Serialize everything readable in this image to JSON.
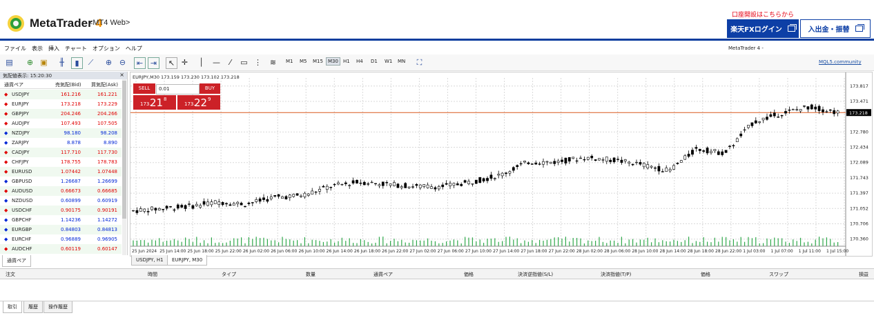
{
  "header": {
    "app_name": "MetaTrader",
    "app_number": "4",
    "subtitle": "<MT4 Web>",
    "promo": "口座開設はこちらから",
    "login_button": "楽天FXログイン",
    "deposit_button": "入出金・振替"
  },
  "menu": [
    "ファイル",
    "表示",
    "挿入",
    "チャート",
    "オプション",
    "ヘルプ"
  ],
  "window_title": "MetaTrader 4 -",
  "toolbar": {
    "timeframes": [
      "M1",
      "M5",
      "M15",
      "M30",
      "H1",
      "H4",
      "D1",
      "W1",
      "MN"
    ],
    "active_timeframe": "M30",
    "mql5_link": "MQL5.community"
  },
  "market_watch": {
    "title": "気配値表示: 15:20:30",
    "col_symbol": "通貨ペア",
    "col_bid": "売気配(Bid)",
    "col_ask": "買気配(Ask)",
    "rows": [
      {
        "symbol": "USDJPY",
        "bid": "161.216",
        "ask": "161.221",
        "dir": "down"
      },
      {
        "symbol": "EURJPY",
        "bid": "173.218",
        "ask": "173.229",
        "dir": "down"
      },
      {
        "symbol": "GBPJPY",
        "bid": "204.246",
        "ask": "204.266",
        "dir": "down"
      },
      {
        "symbol": "AUDJPY",
        "bid": "107.493",
        "ask": "107.505",
        "dir": "down"
      },
      {
        "symbol": "NZDJPY",
        "bid": "98.180",
        "ask": "98.208",
        "dir": "up"
      },
      {
        "symbol": "ZARJPY",
        "bid": "8.878",
        "ask": "8.890",
        "dir": "up"
      },
      {
        "symbol": "CADJPY",
        "bid": "117.710",
        "ask": "117.730",
        "dir": "down"
      },
      {
        "symbol": "CHFJPY",
        "bid": "178.755",
        "ask": "178.783",
        "dir": "down"
      },
      {
        "symbol": "EURUSD",
        "bid": "1.07442",
        "ask": "1.07448",
        "dir": "down"
      },
      {
        "symbol": "GBPUSD",
        "bid": "1.26687",
        "ask": "1.26699",
        "dir": "up"
      },
      {
        "symbol": "AUDUSD",
        "bid": "0.66673",
        "ask": "0.66685",
        "dir": "down"
      },
      {
        "symbol": "NZDUSD",
        "bid": "0.60899",
        "ask": "0.60919",
        "dir": "up"
      },
      {
        "symbol": "USDCHF",
        "bid": "0.90175",
        "ask": "0.90191",
        "dir": "down"
      },
      {
        "symbol": "GBPCHF",
        "bid": "1.14236",
        "ask": "1.14272",
        "dir": "up"
      },
      {
        "symbol": "EURGBP",
        "bid": "0.84803",
        "ask": "0.84813",
        "dir": "up"
      },
      {
        "symbol": "EURCHF",
        "bid": "0.96889",
        "ask": "0.96905",
        "dir": "up"
      },
      {
        "symbol": "AUDCHF",
        "bid": "0.60119",
        "ask": "0.60147",
        "dir": "down"
      }
    ],
    "tab": "通貨ペア"
  },
  "chart": {
    "info": "EURJPY,M30  173.159 173.230 173.102 173.218",
    "sell_label": "SELL",
    "buy_label": "BUY",
    "lot": "0.01",
    "sell_price_small": "173.",
    "sell_price_big": "21",
    "sell_price_sup": "8",
    "buy_price_small": "173.",
    "buy_price_big": "22",
    "buy_price_sup": "9",
    "price_labels": [
      "173.817",
      "173.471",
      "173.218",
      "172.780",
      "172.434",
      "172.089",
      "171.743",
      "171.397",
      "171.052",
      "170.706",
      "170.360"
    ],
    "current_price": "173.218",
    "time_labels": [
      "25 Jun 2024",
      "25 Jun 14:00",
      "25 Jun 18:00",
      "25 Jun 22:00",
      "26 Jun 02:00",
      "26 Jun 06:00",
      "26 Jun 10:00",
      "26 Jun 14:00",
      "26 Jun 18:00",
      "26 Jun 22:00",
      "27 Jun 02:00",
      "27 Jun 06:00",
      "27 Jun 10:00",
      "27 Jun 14:00",
      "27 Jun 18:00",
      "27 Jun 22:00",
      "28 Jun 02:00",
      "28 Jun 06:00",
      "28 Jun 10:00",
      "28 Jun 14:00",
      "28 Jun 18:00",
      "28 Jun 22:00",
      "1 Jul 03:00",
      "1 Jul 07:00",
      "1 Jul 11:00",
      "1 Jul 15:00"
    ],
    "tabs": [
      "USDJPY, H1",
      "EURJPY, M30"
    ],
    "active_tab": "EURJPY, M30"
  },
  "chart_data": {
    "type": "line",
    "ylim": [
      170.2,
      174.0
    ],
    "x": [
      "25 Jun 2024",
      "25 Jun 14:00",
      "25 Jun 18:00",
      "25 Jun 22:00",
      "26 Jun 02:00",
      "26 Jun 06:00",
      "26 Jun 10:00",
      "26 Jun 14:00",
      "26 Jun 18:00",
      "26 Jun 22:00",
      "27 Jun 02:00",
      "27 Jun 06:00",
      "27 Jun 10:00",
      "27 Jun 14:00",
      "27 Jun 18:00",
      "27 Jun 22:00",
      "28 Jun 02:00",
      "28 Jun 06:00",
      "28 Jun 10:00",
      "28 Jun 14:00",
      "28 Jun 18:00",
      "28 Jun 22:00",
      "1 Jul 03:00",
      "1 Jul 07:00",
      "1 Jul 11:00",
      "1 Jul 15:00"
    ],
    "values": [
      171.0,
      171.05,
      171.1,
      171.2,
      171.15,
      171.3,
      171.35,
      171.55,
      171.65,
      171.6,
      171.55,
      171.55,
      171.65,
      171.8,
      172.1,
      172.1,
      172.2,
      172.15,
      172.05,
      171.9,
      172.4,
      172.3,
      173.0,
      173.2,
      173.35,
      173.22
    ]
  },
  "terminal": {
    "columns": [
      "注文",
      "時間",
      "タイプ",
      "数量",
      "通貨ペア",
      "価格",
      "決済逆指値(S/L)",
      "決済指値(T/P)",
      "価格",
      "スワップ",
      "損益"
    ],
    "tabs": [
      "取引",
      "履歴",
      "操作履歴"
    ]
  },
  "colors": {
    "bid_up": "#0026d6",
    "bid_down": "#e00000",
    "brand": "#0d3fa6",
    "price_line": "#d9581e",
    "volume": "#2ea84a"
  }
}
